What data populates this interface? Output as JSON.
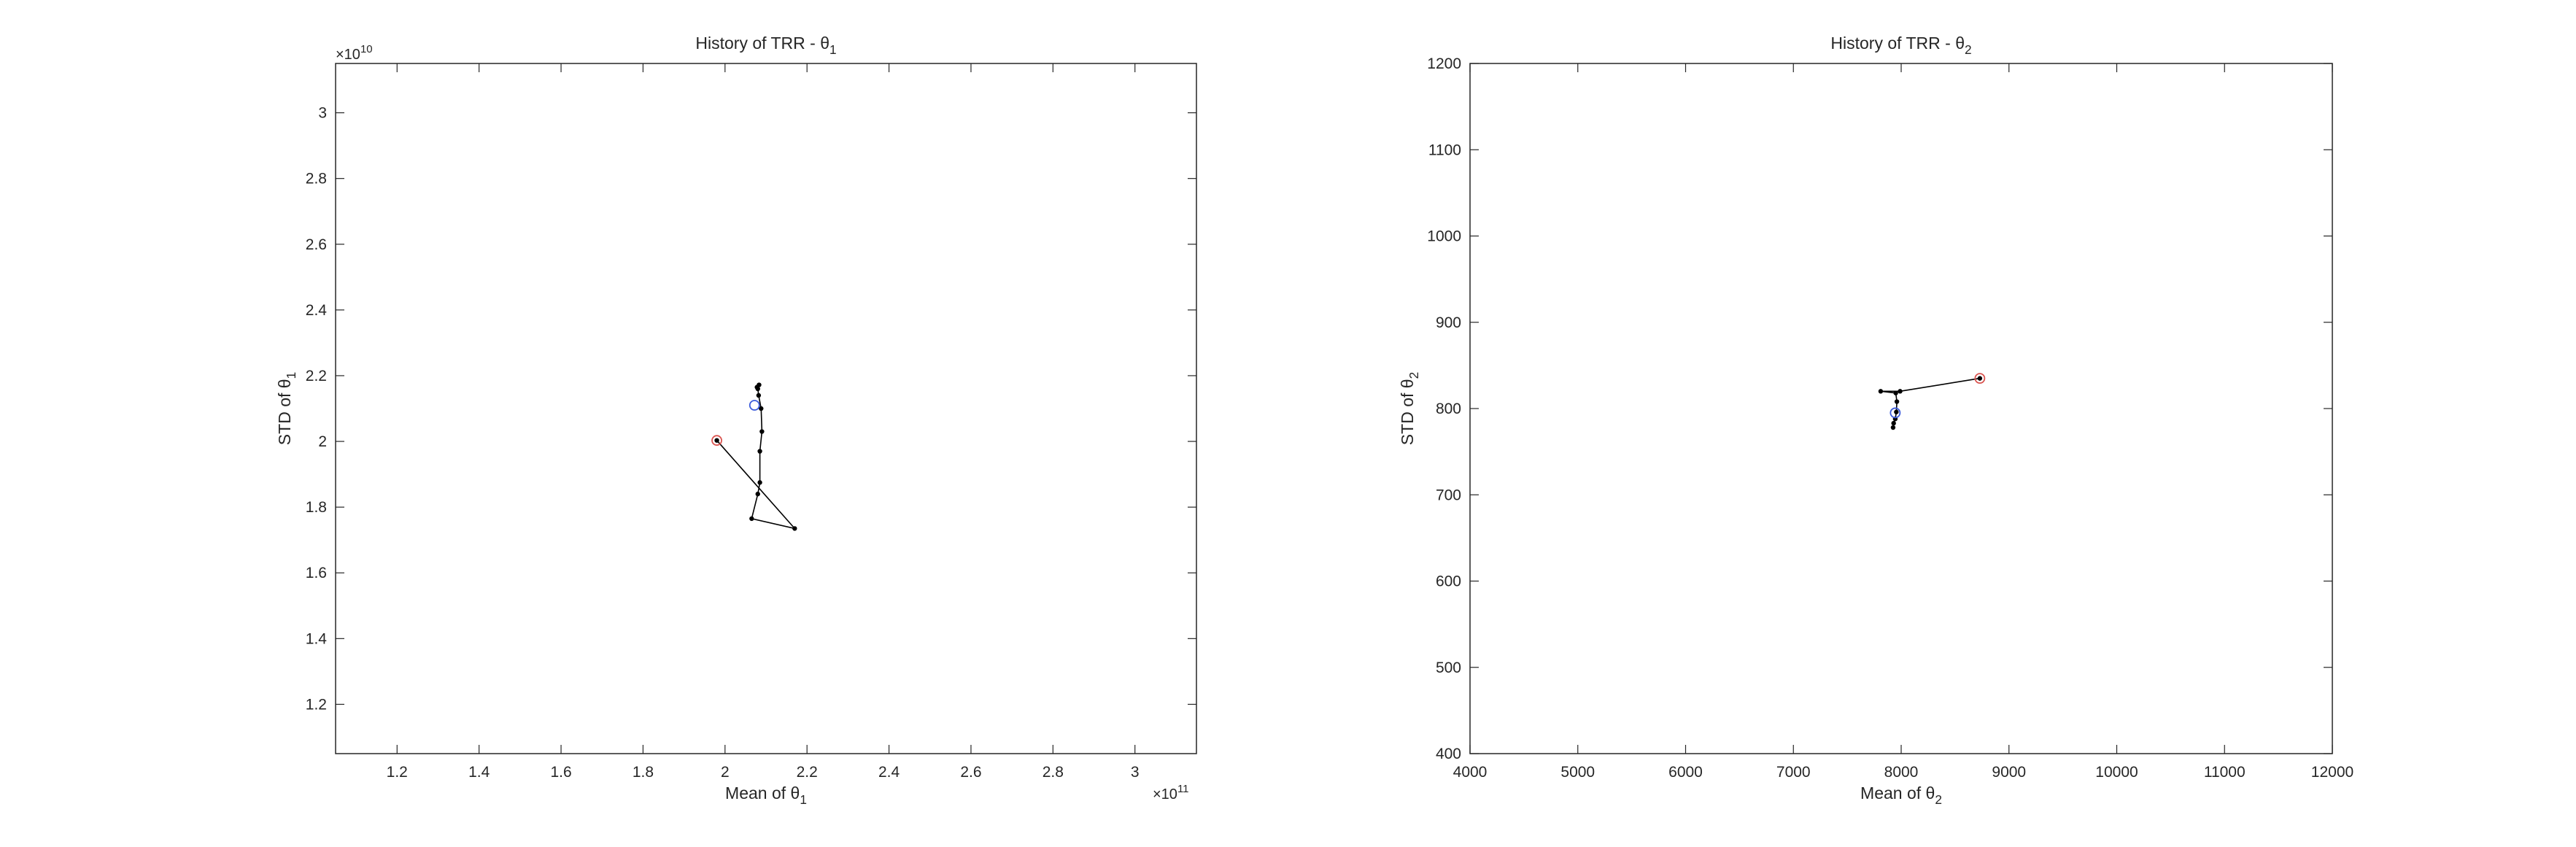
{
  "chart_data": [
    {
      "type": "line",
      "title": "History of TRR - θ",
      "title_sub": "1",
      "xlabel": "Mean of θ",
      "xlabel_sub": "1",
      "ylabel": "STD of θ",
      "ylabel_sub": "1",
      "xlim": [
        105000000000.0,
        315000000000.0
      ],
      "ylim": [
        10500000000.0,
        31500000000.0
      ],
      "x_ticks": [
        120000000000.0,
        140000000000.0,
        160000000000.0,
        180000000000.0,
        200000000000.0,
        220000000000.0,
        240000000000.0,
        260000000000.0,
        280000000000.0,
        300000000000.0
      ],
      "x_tick_labels": [
        "1.2",
        "1.4",
        "1.6",
        "1.8",
        "2",
        "2.2",
        "2.4",
        "2.6",
        "2.8",
        "3"
      ],
      "y_ticks": [
        12000000000.0,
        14000000000.0,
        16000000000.0,
        18000000000.0,
        20000000000.0,
        22000000000.0,
        24000000000.0,
        26000000000.0,
        28000000000.0,
        30000000000.0
      ],
      "y_tick_labels": [
        "1.2",
        "1.4",
        "1.6",
        "1.8",
        "2",
        "2.2",
        "2.4",
        "2.6",
        "2.8",
        "3"
      ],
      "x_exponent": "11",
      "y_exponent": "10",
      "exponent_base": "×10",
      "grid": false,
      "series": [
        {
          "values": [
            [
              198000000000.0,
              20030000000.0
            ],
            [
              217000000000.0,
              17350000000.0
            ],
            [
              206500000000.0,
              17650000000.0
            ],
            [
              208000000000.0,
              18400000000.0
            ],
            [
              208500000000.0,
              18750000000.0
            ],
            [
              208500000000.0,
              19700000000.0
            ],
            [
              209000000000.0,
              20300000000.0
            ],
            [
              208800000000.0,
              21000000000.0
            ],
            [
              208200000000.0,
              21400000000.0
            ],
            [
              208000000000.0,
              21600000000.0
            ],
            [
              208300000000.0,
              21720000000.0
            ],
            [
              207800000000.0,
              21650000000.0
            ]
          ],
          "color": "#000000"
        }
      ],
      "start_marker": {
        "x": 198000000000.0,
        "y": 20030000000.0,
        "color": "#d9534f"
      },
      "end_marker": {
        "x": 207200000000.0,
        "y": 21100000000.0,
        "color": "#3b5bdb"
      }
    },
    {
      "type": "line",
      "title": "History of TRR - θ",
      "title_sub": "2",
      "xlabel": "Mean of θ",
      "xlabel_sub": "2",
      "ylabel": "STD of θ",
      "ylabel_sub": "2",
      "xlim": [
        4000,
        12000
      ],
      "ylim": [
        400,
        1200
      ],
      "x_ticks": [
        4000,
        5000,
        6000,
        7000,
        8000,
        9000,
        10000,
        11000,
        12000
      ],
      "x_tick_labels": [
        "4000",
        "5000",
        "6000",
        "7000",
        "8000",
        "9000",
        "10000",
        "11000",
        "12000"
      ],
      "y_ticks": [
        400,
        500,
        600,
        700,
        800,
        900,
        1000,
        1100,
        1200
      ],
      "y_tick_labels": [
        "400",
        "500",
        "600",
        "700",
        "800",
        "900",
        "1000",
        "1100",
        "1200"
      ],
      "grid": false,
      "series": [
        {
          "values": [
            [
              8730,
              835
            ],
            [
              7990,
              820
            ],
            [
              7810,
              820
            ],
            [
              7950,
              818
            ],
            [
              7960,
              808
            ],
            [
              7955,
              796
            ],
            [
              7945,
              788
            ],
            [
              7930,
              783
            ],
            [
              7925,
              778
            ]
          ],
          "color": "#000000"
        }
      ],
      "start_marker": {
        "x": 8730,
        "y": 835,
        "color": "#d9534f"
      },
      "end_marker": {
        "x": 7945,
        "y": 795,
        "color": "#3b5bdb"
      }
    }
  ]
}
